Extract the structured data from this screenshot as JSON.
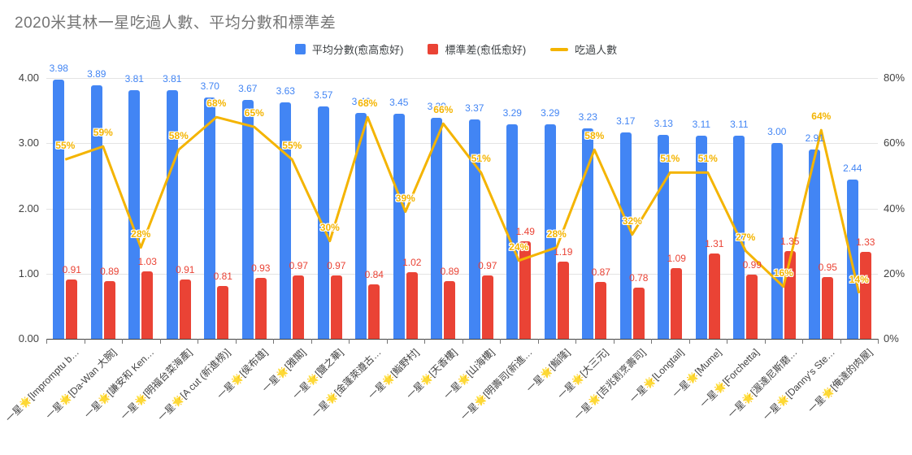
{
  "title": "2020米其林一星吃過人數、平均分數和標準差",
  "legend": [
    {
      "label": "平均分數(愈高愈好)",
      "color": "#4285F4",
      "swatch": "square"
    },
    {
      "label": "標準差(愈低愈好)",
      "color": "#EA4335",
      "swatch": "square"
    },
    {
      "label": "吃過人數",
      "color": "#F4B400",
      "swatch": "line"
    }
  ],
  "chart_data": {
    "type": "bar",
    "subtype": "combo-bar-line-dual-axis",
    "title": "2020米其林一星吃過人數、平均分數和標準差",
    "categories": [
      "一星🌟[Impromptu b…",
      "一星🌟[Da-Wan 大腕]",
      "一星🌟[謙安和 Ken…",
      "一星🌟[明福台菜海產]",
      "一星🌟[A cut (新進榜)]",
      "一星🌟[侯布雄]",
      "一星🌟[雅閣]",
      "一星🌟[鹽之華]",
      "一星🌟[金蓬萊遵古…",
      "一星🌟[鮨野村]",
      "一星🌟[天香樓]",
      "一星🌟[山海樓]",
      "一星🌟[明壽司(新進…",
      "一星🌟[鮨隆]",
      "一星🌟[大三元]",
      "一星🌟[吉兆割烹壽司]",
      "一星🌟[Longtail]",
      "一星🌟[Mume]",
      "一星🌟[Forchetta]",
      "一星🌟[渥達尼斯磨…",
      "一星🌟[Danny's Ste…",
      "一星🌟[俺達的肉屋]"
    ],
    "series": [
      {
        "name": "平均分數(愈高愈好)",
        "type": "bar",
        "axis": "left",
        "color": "#4285F4",
        "values": [
          3.98,
          3.89,
          3.81,
          3.81,
          3.7,
          3.67,
          3.63,
          3.57,
          3.46,
          3.45,
          3.39,
          3.37,
          3.29,
          3.29,
          3.23,
          3.17,
          3.13,
          3.11,
          3.11,
          3.0,
          2.91,
          2.44
        ]
      },
      {
        "name": "標準差(愈低愈好)",
        "type": "bar",
        "axis": "left",
        "color": "#EA4335",
        "values": [
          0.91,
          0.89,
          1.03,
          0.91,
          0.81,
          0.93,
          0.97,
          0.97,
          0.84,
          1.02,
          0.89,
          0.97,
          1.49,
          1.19,
          0.87,
          0.78,
          1.09,
          1.31,
          0.99,
          1.35,
          0.95,
          1.33
        ]
      },
      {
        "name": "吃過人數",
        "type": "line",
        "axis": "right",
        "color": "#F4B400",
        "unit": "%",
        "values": [
          55,
          59,
          28,
          58,
          68,
          65,
          55,
          30,
          68,
          39,
          66,
          51,
          24,
          28,
          58,
          32,
          51,
          51,
          27,
          16,
          64,
          14
        ]
      }
    ],
    "left_axis": {
      "ticks": [
        "4.00",
        "3.00",
        "2.00",
        "1.00",
        "0.00"
      ],
      "min": 0,
      "max": 4
    },
    "right_axis": {
      "ticks": [
        "80%",
        "60%",
        "40%",
        "20%",
        "0%"
      ],
      "min": 0,
      "max": 80
    },
    "grid": true,
    "legend_position": "top-center"
  }
}
